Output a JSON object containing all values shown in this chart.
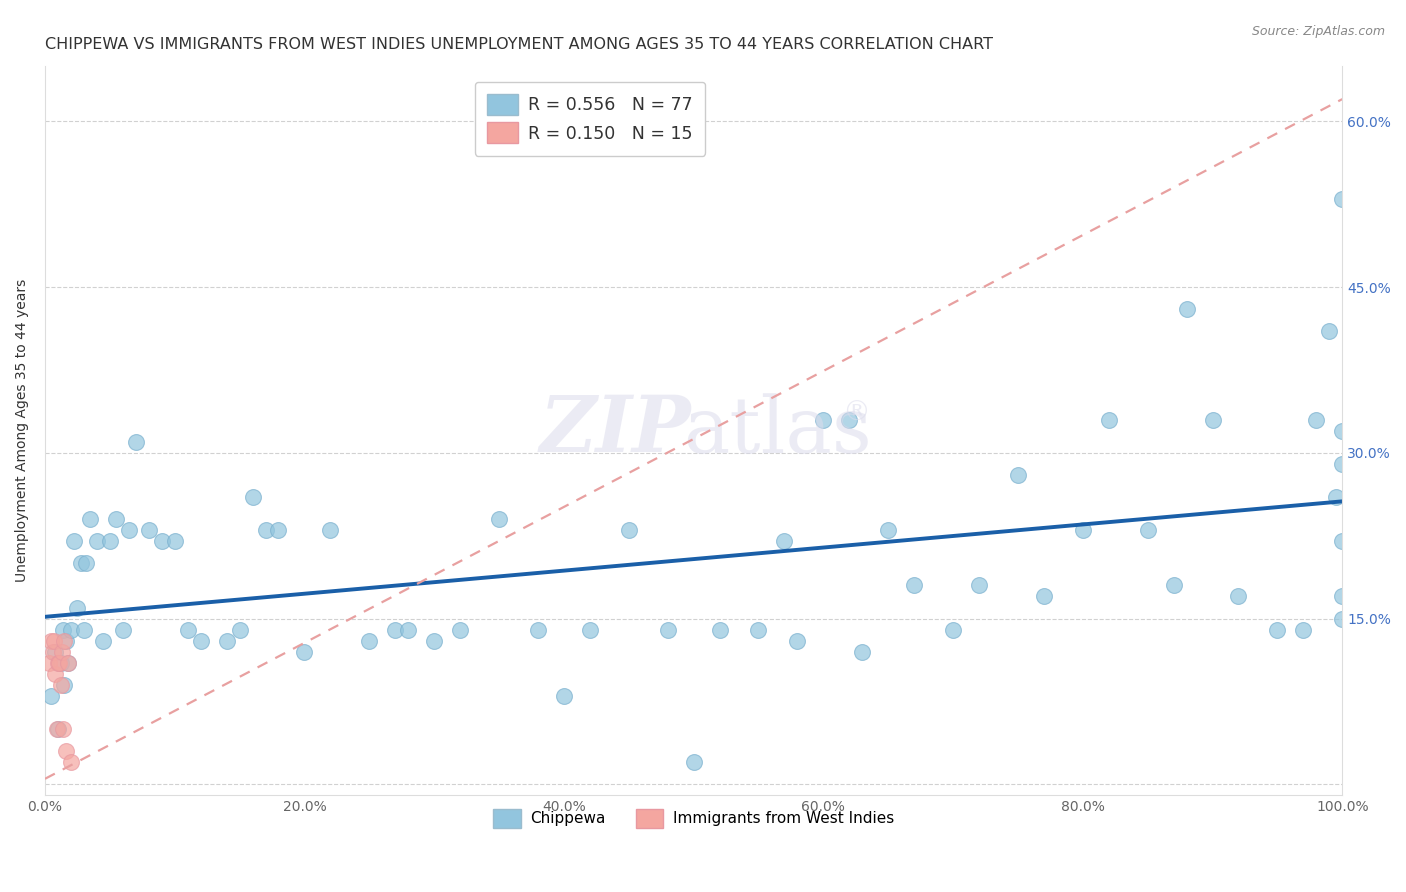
{
  "title": "CHIPPEWA VS IMMIGRANTS FROM WEST INDIES UNEMPLOYMENT AMONG AGES 35 TO 44 YEARS CORRELATION CHART",
  "source": "Source: ZipAtlas.com",
  "ylabel": "Unemployment Among Ages 35 to 44 years",
  "chippewa_color": "#92C5DE",
  "west_indies_color": "#F4A6A0",
  "trend_blue_color": "#1A5FA8",
  "trend_pink_color": "#E8A0A0",
  "background": "#FFFFFF",
  "chippewa_x": [
    0.5,
    0.8,
    1.0,
    1.2,
    1.4,
    1.5,
    1.6,
    1.8,
    2.0,
    2.2,
    2.5,
    2.8,
    3.0,
    3.2,
    3.5,
    4.0,
    4.5,
    5.0,
    5.5,
    6.0,
    6.5,
    7.0,
    8.0,
    9.0,
    10.0,
    11.0,
    12.0,
    14.0,
    15.0,
    16.0,
    17.0,
    18.0,
    20.0,
    22.0,
    25.0,
    27.0,
    28.0,
    30.0,
    32.0,
    35.0,
    38.0,
    40.0,
    42.0,
    45.0,
    48.0,
    50.0,
    52.0,
    55.0,
    57.0,
    58.0,
    60.0,
    62.0,
    63.0,
    65.0,
    67.0,
    70.0,
    72.0,
    75.0,
    77.0,
    80.0,
    82.0,
    85.0,
    87.0,
    88.0,
    90.0,
    92.0,
    95.0,
    97.0,
    98.0,
    99.0,
    99.5,
    100.0,
    100.0,
    100.0,
    100.0,
    100.0,
    100.0
  ],
  "chippewa_y": [
    8.0,
    12.0,
    5.0,
    11.0,
    14.0,
    9.0,
    13.0,
    11.0,
    14.0,
    22.0,
    16.0,
    20.0,
    14.0,
    20.0,
    24.0,
    22.0,
    13.0,
    22.0,
    24.0,
    14.0,
    23.0,
    31.0,
    23.0,
    22.0,
    22.0,
    14.0,
    13.0,
    13.0,
    14.0,
    26.0,
    23.0,
    23.0,
    12.0,
    23.0,
    13.0,
    14.0,
    14.0,
    13.0,
    14.0,
    24.0,
    14.0,
    8.0,
    14.0,
    23.0,
    14.0,
    2.0,
    14.0,
    14.0,
    22.0,
    13.0,
    33.0,
    33.0,
    12.0,
    23.0,
    18.0,
    14.0,
    18.0,
    28.0,
    17.0,
    23.0,
    33.0,
    23.0,
    18.0,
    43.0,
    33.0,
    17.0,
    14.0,
    14.0,
    33.0,
    41.0,
    26.0,
    53.0,
    15.0,
    29.0,
    32.0,
    17.0,
    22.0
  ],
  "west_indies_x": [
    0.3,
    0.5,
    0.6,
    0.7,
    0.8,
    0.9,
    1.0,
    1.1,
    1.2,
    1.3,
    1.4,
    1.5,
    1.6,
    1.8,
    2.0
  ],
  "west_indies_y": [
    11.0,
    13.0,
    12.0,
    13.0,
    10.0,
    5.0,
    11.0,
    11.0,
    9.0,
    12.0,
    5.0,
    13.0,
    3.0,
    11.0,
    2.0
  ],
  "xlim": [
    0,
    100
  ],
  "ylim": [
    -1,
    65
  ],
  "xticks": [
    0,
    20,
    40,
    60,
    80,
    100
  ],
  "yticks": [
    0,
    15,
    30,
    45,
    60
  ],
  "xtick_labels": [
    "0.0%",
    "20.0%",
    "40.0%",
    "60.0%",
    "80.0%",
    "100.0%"
  ],
  "ytick_labels": [
    "",
    "15.0%",
    "30.0%",
    "45.0%",
    "60.0%"
  ],
  "grid_color": "#CCCCCC",
  "title_fontsize": 11.5,
  "axis_label_fontsize": 10,
  "tick_fontsize": 10,
  "marker_size": 130
}
